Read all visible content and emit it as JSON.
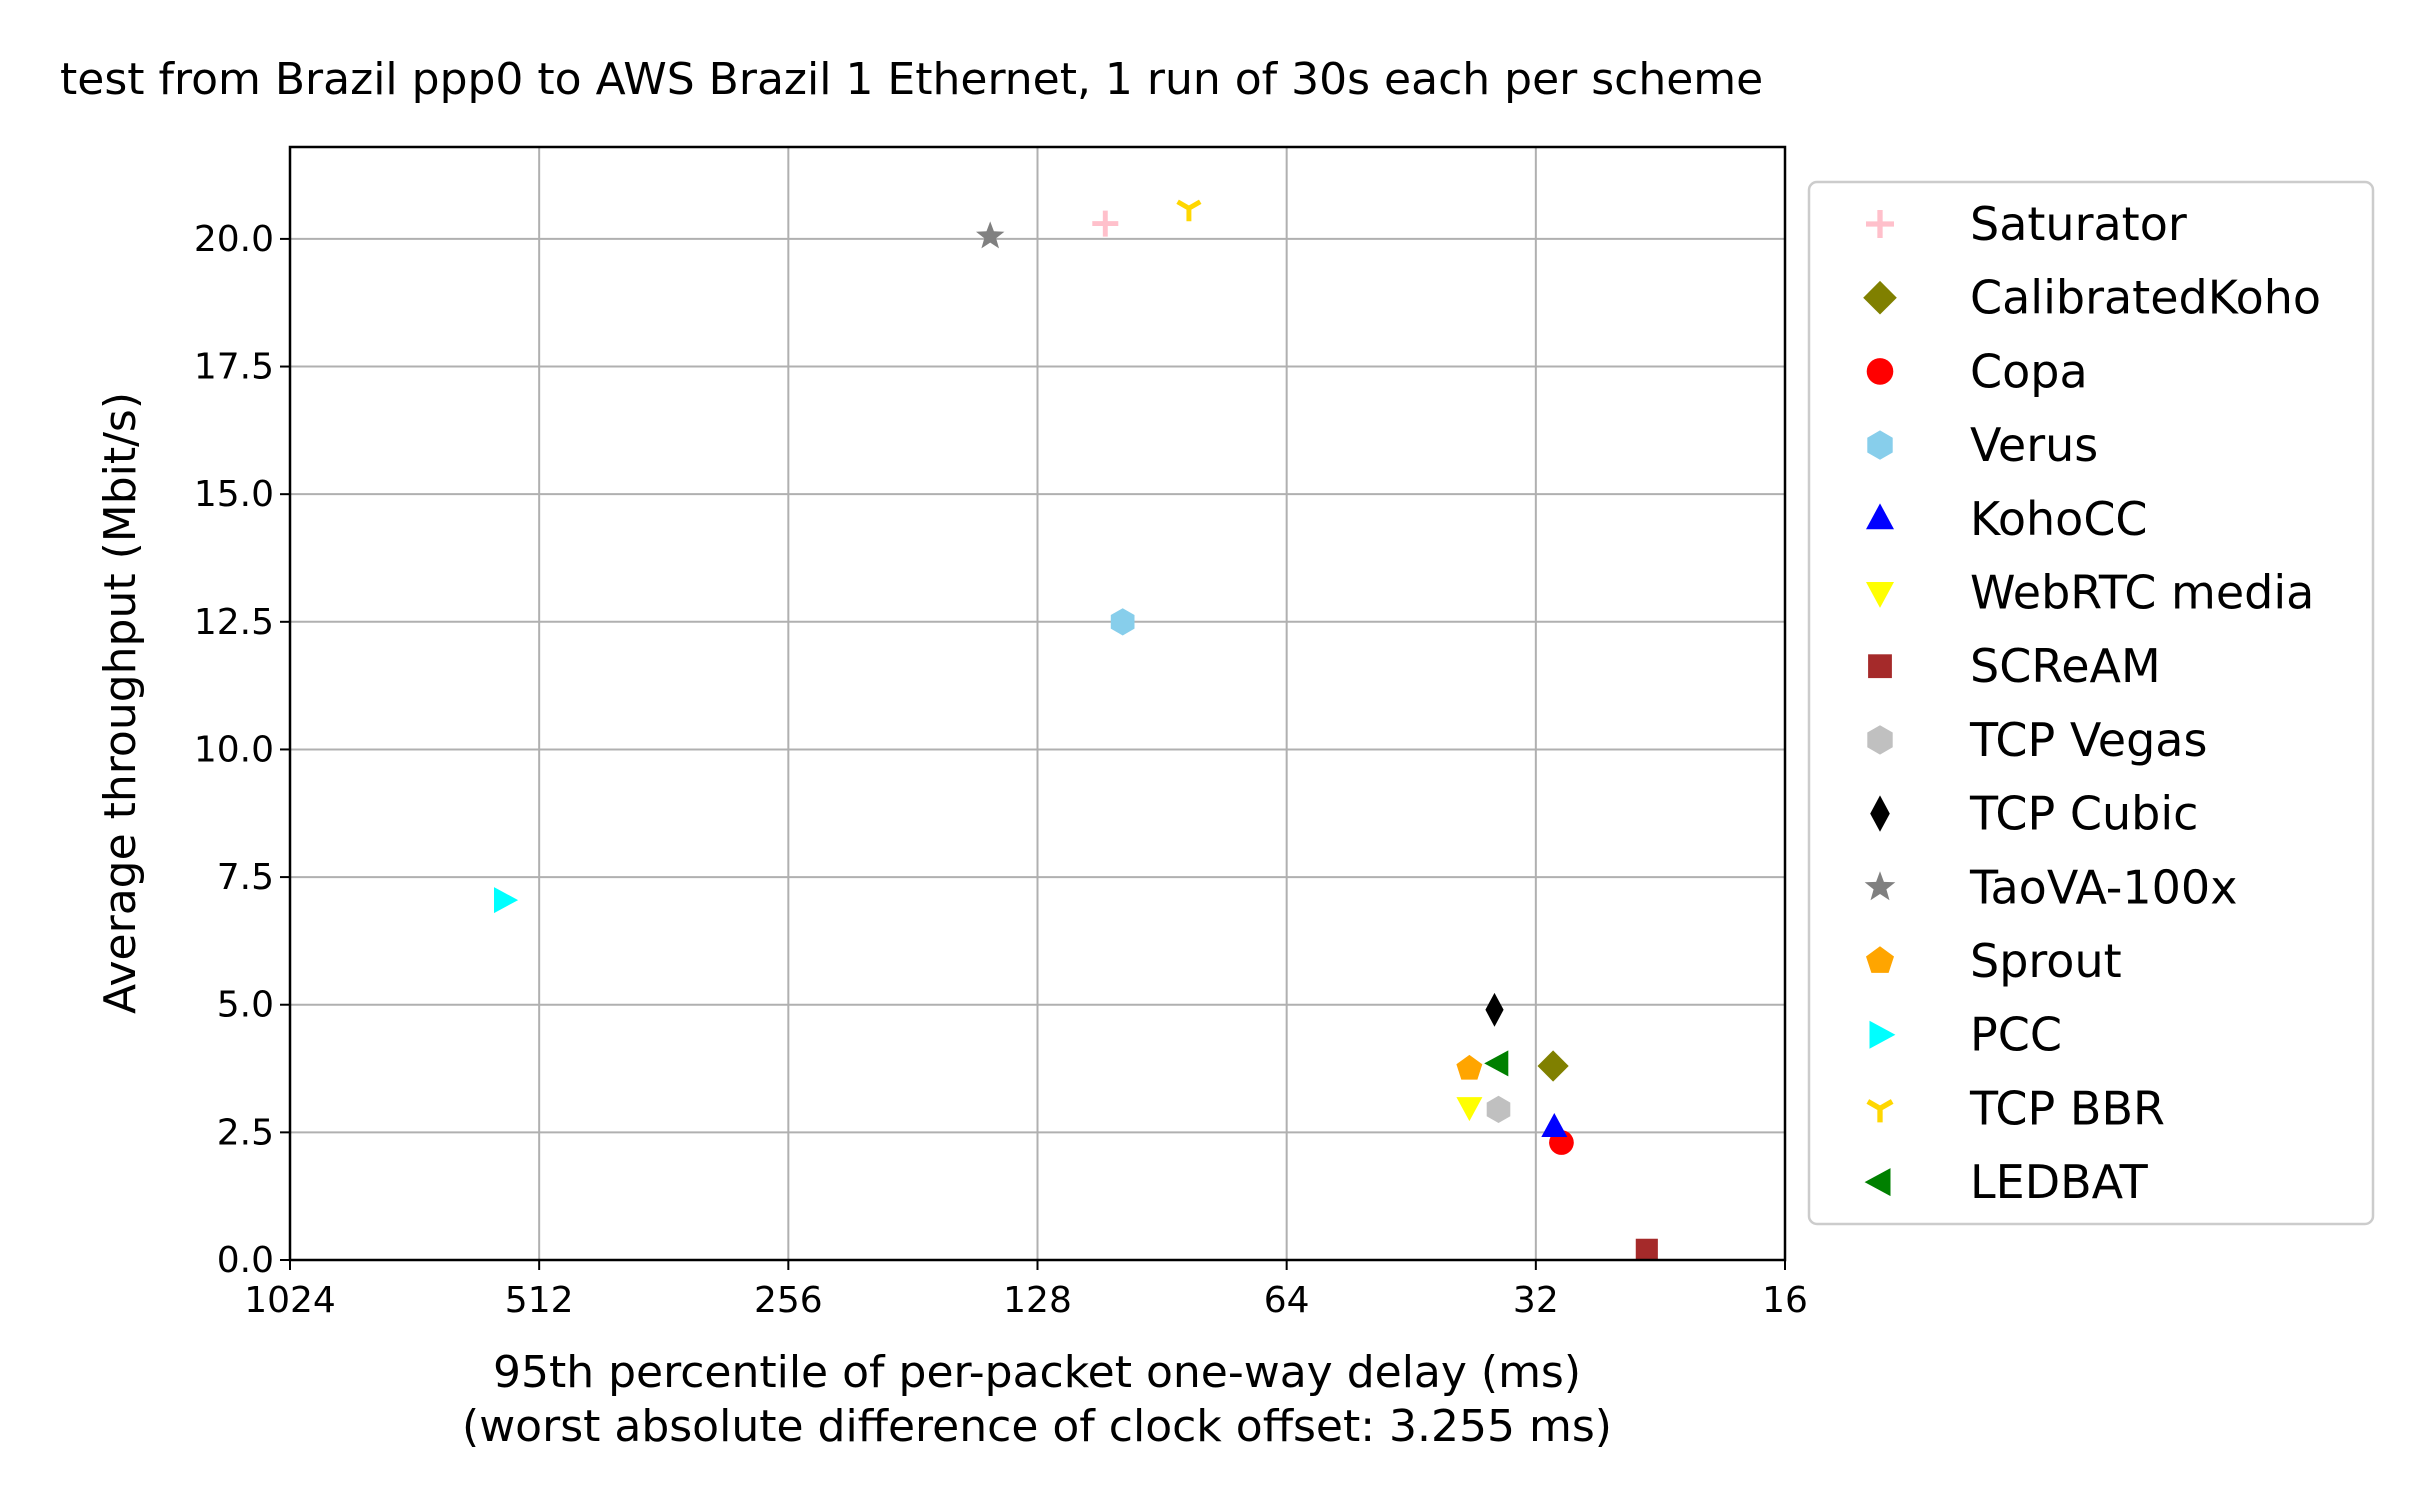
{
  "chart_data": {
    "type": "scatter",
    "title": "test from Brazil ppp0 to AWS Brazil 1 Ethernet, 1 run of 30s each per scheme",
    "xlabel": "95th percentile of per-packet one-way delay (ms)",
    "xlabel_sub": "(worst absolute difference of clock offset: 3.255 ms)",
    "ylabel": "Average throughput (Mbit/s)",
    "x_scale": "log2",
    "x_inverted": true,
    "xlim": [
      1024,
      16
    ],
    "ylim": [
      0,
      21.8
    ],
    "x_ticks": [
      1024,
      512,
      256,
      128,
      64,
      32,
      16
    ],
    "x_tick_labels": [
      "1024",
      "512",
      "256",
      "128",
      "64",
      "32",
      "16"
    ],
    "y_ticks": [
      0,
      2.5,
      5,
      7.5,
      10,
      12.5,
      15,
      17.5,
      20
    ],
    "y_tick_labels": [
      "0.0",
      "2.5",
      "5.0",
      "7.5",
      "10.0",
      "12.5",
      "15.0",
      "17.5",
      "20.0"
    ],
    "grid": true,
    "legend_position": "outside-right",
    "series": [
      {
        "name": "Saturator",
        "marker": "plus",
        "color": "#ffc0cb",
        "x": 106,
        "y": 20.3
      },
      {
        "name": "CalibratedKoho",
        "marker": "diamond",
        "color": "#808000",
        "x": 30.5,
        "y": 3.8
      },
      {
        "name": "Copa",
        "marker": "circle",
        "color": "#ff0000",
        "x": 29.8,
        "y": 2.3
      },
      {
        "name": "Verus",
        "marker": "hexagon",
        "color": "#87ceeb",
        "x": 101,
        "y": 12.5
      },
      {
        "name": "KohoCC",
        "marker": "triangle-up",
        "color": "#0000ff",
        "x": 30.4,
        "y": 2.6
      },
      {
        "name": "WebRTC media",
        "marker": "triangle-down",
        "color": "#ffff00",
        "x": 38.5,
        "y": 3.0
      },
      {
        "name": "SCReAM",
        "marker": "square",
        "color": "#a52a2a",
        "x": 23.5,
        "y": 0.2
      },
      {
        "name": "TCP Vegas",
        "marker": "hexagon",
        "color": "#c0c0c0",
        "x": 35.5,
        "y": 2.95
      },
      {
        "name": "TCP Cubic",
        "marker": "thin-diamond",
        "color": "#000000",
        "x": 35.9,
        "y": 4.9
      },
      {
        "name": "TaoVA-100x",
        "marker": "star",
        "color": "#808080",
        "x": 146,
        "y": 20.05
      },
      {
        "name": "Sprout",
        "marker": "pentagon",
        "color": "#ffa500",
        "x": 38.5,
        "y": 3.75
      },
      {
        "name": "PCC",
        "marker": "triangle-right",
        "color": "#00ffff",
        "x": 565,
        "y": 7.05
      },
      {
        "name": "TCP BBR",
        "marker": "tri-down",
        "color": "#ffd700",
        "x": 84,
        "y": 20.6
      },
      {
        "name": "LEDBAT",
        "marker": "triangle-left",
        "color": "#008000",
        "x": 35.5,
        "y": 3.85
      }
    ]
  }
}
